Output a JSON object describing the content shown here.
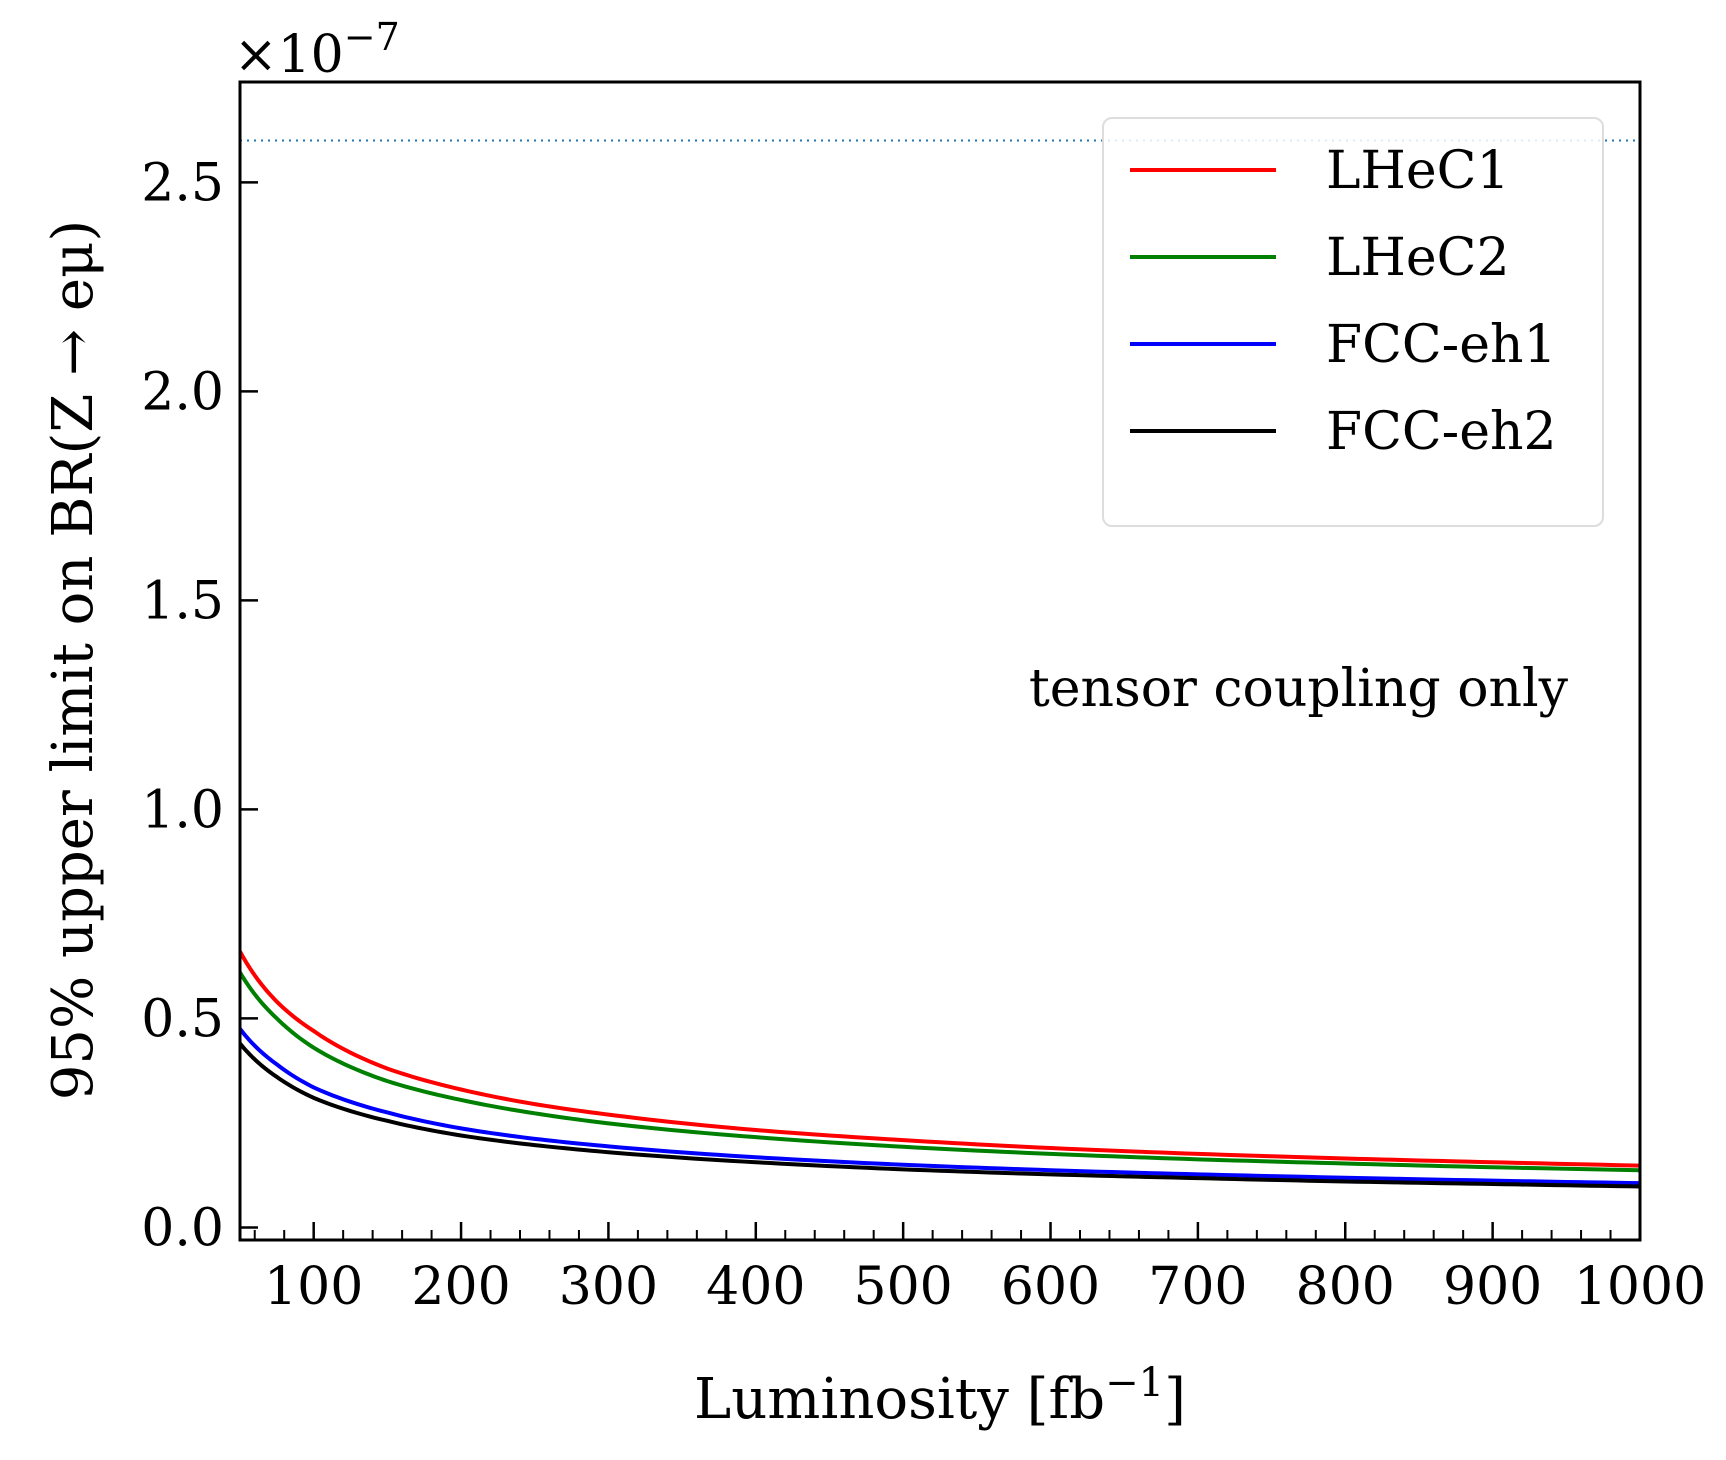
{
  "chart_data": {
    "type": "line",
    "title": "",
    "xlabel": "Luminosity [fb",
    "xlabel_superscript": "−1",
    "xlabel_suffix": "]",
    "ylabel": "95% upper limit on BR(Z → eμ)",
    "y_scale_label": "×10",
    "y_scale_exponent": "−7",
    "xlim": [
      50,
      1000
    ],
    "ylim": [
      -0.03,
      2.74
    ],
    "x_ticks": [
      100,
      200,
      300,
      400,
      500,
      600,
      700,
      800,
      900,
      1000
    ],
    "x_tick_labels": [
      "100",
      "200",
      "300",
      "400",
      "500",
      "600",
      "700",
      "800",
      "900",
      "1000"
    ],
    "y_ticks": [
      0.0,
      0.5,
      1.0,
      1.5,
      2.0,
      2.5
    ],
    "y_tick_labels": [
      "0.0",
      "0.5",
      "1.0",
      "1.5",
      "2.0",
      "2.5"
    ],
    "reference_line": {
      "y": 2.6,
      "color": "#1f77b4",
      "style": "dotted"
    },
    "annotation": "tensor coupling only",
    "legend_position": "top-right",
    "x": [
      50,
      75,
      100,
      150,
      200,
      250,
      300,
      400,
      500,
      600,
      700,
      800,
      900,
      1000
    ],
    "series": [
      {
        "name": "LHeC1",
        "color": "#ff0000",
        "values": [
          0.66,
          0.54,
          0.47,
          0.38,
          0.33,
          0.295,
          0.27,
          0.233,
          0.209,
          0.19,
          0.176,
          0.165,
          0.156,
          0.148
        ]
      },
      {
        "name": "LHeC2",
        "color": "#008000",
        "values": [
          0.61,
          0.5,
          0.43,
          0.35,
          0.305,
          0.273,
          0.249,
          0.216,
          0.193,
          0.176,
          0.163,
          0.153,
          0.144,
          0.137
        ]
      },
      {
        "name": "FCC-eh1",
        "color": "#0000ff",
        "values": [
          0.475,
          0.39,
          0.335,
          0.275,
          0.237,
          0.212,
          0.194,
          0.168,
          0.15,
          0.137,
          0.127,
          0.119,
          0.112,
          0.106
        ]
      },
      {
        "name": "FCC-eh2",
        "color": "#000000",
        "values": [
          0.44,
          0.36,
          0.31,
          0.255,
          0.22,
          0.197,
          0.18,
          0.156,
          0.139,
          0.127,
          0.118,
          0.11,
          0.104,
          0.098
        ]
      }
    ]
  }
}
